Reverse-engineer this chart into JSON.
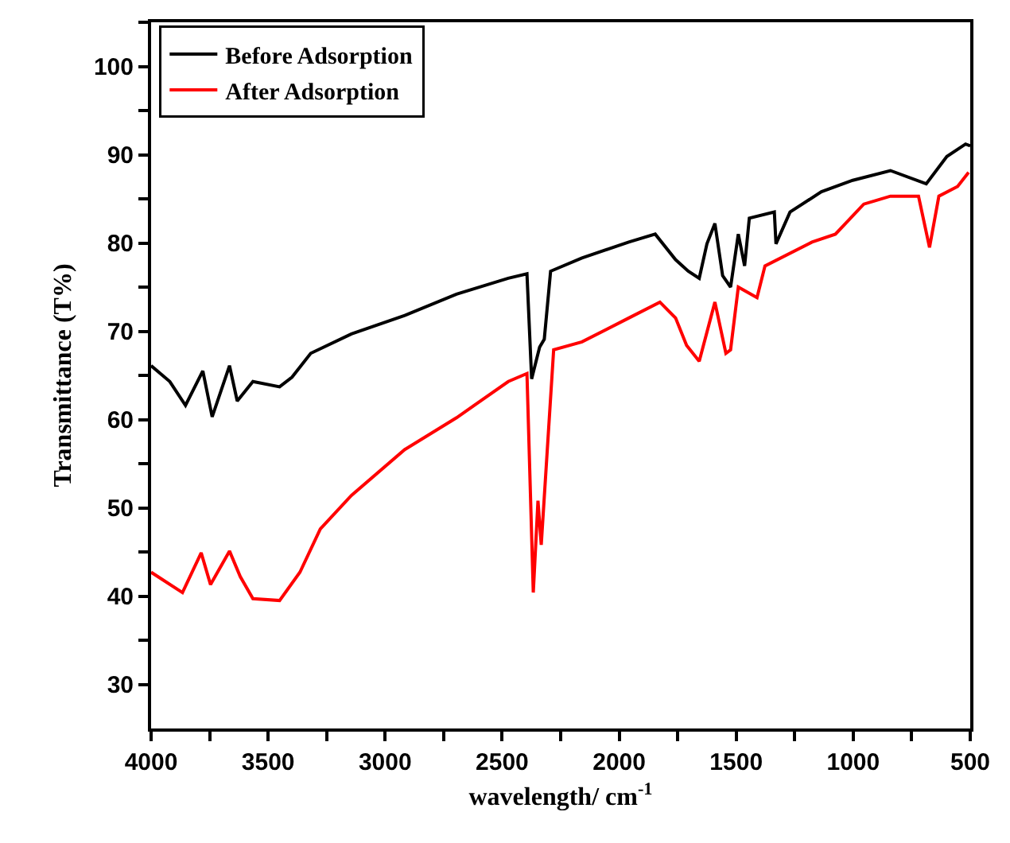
{
  "chart_data": {
    "type": "line",
    "xlabel": "wavelength/ cm$^{-1}$",
    "ylabel": "Transmittance (T%)",
    "xlim": [
      4000,
      500
    ],
    "ylim": [
      25,
      105
    ],
    "xticks": [
      4000,
      {
        "value": 3750,
        "label": null
      },
      3500,
      {
        "value": 3250,
        "label": null
      },
      3000,
      {
        "value": 2750,
        "label": null
      },
      2500,
      {
        "value": 2250,
        "label": null
      },
      2000,
      {
        "value": 1750,
        "label": null
      },
      1500,
      {
        "value": 1250,
        "label": null
      },
      1000,
      {
        "value": 750,
        "label": null
      },
      500
    ],
    "yticks": [
      30,
      {
        "value": 35,
        "label": null
      },
      40,
      {
        "value": 45,
        "label": null
      },
      50,
      {
        "value": 55,
        "label": null
      },
      60,
      {
        "value": 65,
        "label": null
      },
      70,
      {
        "value": 75,
        "label": null
      },
      80,
      {
        "value": 85,
        "label": null
      },
      90,
      {
        "value": 95,
        "label": null
      },
      100,
      {
        "value": 105,
        "label": null
      }
    ],
    "legend": "top left",
    "marker": "none",
    "line_style": "solid",
    "series": [
      {
        "name": "Before Adsorption",
        "color": "#000000",
        "x": [
          4000,
          3920,
          3853,
          3779,
          3739,
          3665,
          3632,
          3565,
          3451,
          3398,
          3318,
          3144,
          2916,
          2695,
          2474,
          2394,
          2374,
          2340,
          2320,
          2293,
          2159,
          1959,
          1846,
          1759,
          1705,
          1658,
          1625,
          1591,
          1558,
          1524,
          1491,
          1464,
          1444,
          1337,
          1330,
          1270,
          1136,
          1002,
          841,
          688,
          600,
          520,
          500
        ],
        "values": [
          66.1,
          64.3,
          61.6,
          65.5,
          60.3,
          66.1,
          62.1,
          64.3,
          63.7,
          64.8,
          67.5,
          69.7,
          71.8,
          74.2,
          76.0,
          76.5,
          64.6,
          68.2,
          69.1,
          76.8,
          78.3,
          80.1,
          81.0,
          78.1,
          76.8,
          76.0,
          79.9,
          82.2,
          76.3,
          75.0,
          81.0,
          77.4,
          82.8,
          83.5,
          79.9,
          83.5,
          85.8,
          87.1,
          88.2,
          86.7,
          89.8,
          91.2,
          91.0
        ]
      },
      {
        "name": "After Adsorption",
        "color": "#ff0000",
        "x": [
          4000,
          3866,
          3786,
          3746,
          3665,
          3619,
          3565,
          3451,
          3364,
          3277,
          3144,
          2916,
          2695,
          2474,
          2394,
          2367,
          2347,
          2333,
          2280,
          2159,
          1959,
          1826,
          1759,
          1712,
          1658,
          1591,
          1544,
          1524,
          1491,
          1411,
          1377,
          1176,
          1076,
          955,
          841,
          721,
          674,
          634,
          554,
          507
        ],
        "values": [
          42.7,
          40.4,
          44.9,
          41.3,
          45.1,
          42.2,
          39.7,
          39.5,
          42.7,
          47.6,
          51.4,
          56.6,
          60.2,
          64.3,
          65.2,
          40.4,
          50.8,
          45.8,
          67.9,
          68.8,
          71.5,
          73.3,
          71.5,
          68.4,
          66.6,
          73.3,
          67.5,
          67.9,
          75.0,
          73.8,
          77.4,
          80.1,
          81.0,
          84.4,
          85.3,
          85.3,
          79.5,
          85.3,
          86.4,
          88.0
        ]
      }
    ]
  }
}
